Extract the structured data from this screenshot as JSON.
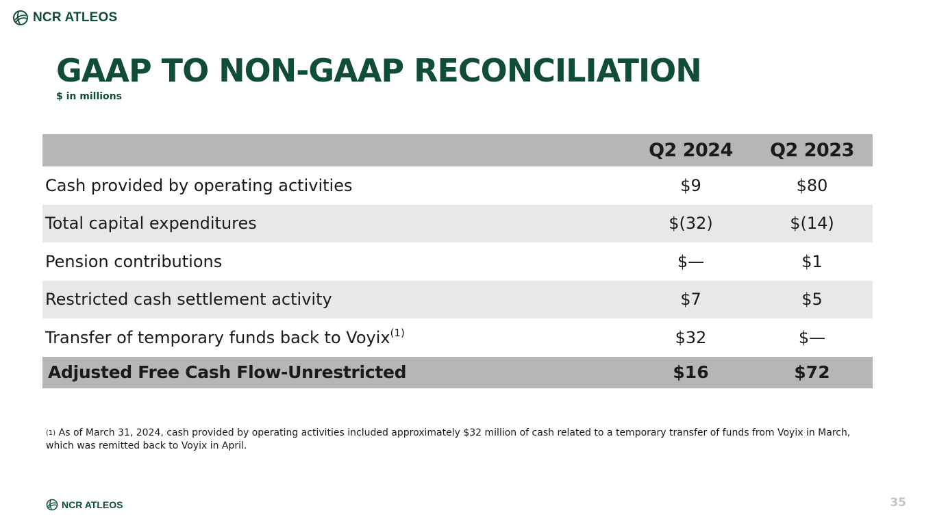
{
  "brand": {
    "name": "NCR ATLEOS",
    "logo_icon": "globe-icon",
    "color": "#0f4c3a"
  },
  "title": "GAAP TO NON-GAAP RECONCILIATION",
  "subtitle": "$ in millions",
  "table": {
    "columns": [
      "",
      "Q2 2024",
      "Q2 2023"
    ],
    "rows": [
      {
        "label": "Cash provided by operating activities",
        "footnote": "",
        "q2_2024": "$9",
        "q2_2023": "$80"
      },
      {
        "label": "Total capital expenditures",
        "footnote": "",
        "q2_2024": "$(32)",
        "q2_2023": "$(14)"
      },
      {
        "label": "Pension contributions",
        "footnote": "",
        "q2_2024": "$—",
        "q2_2023": "$1"
      },
      {
        "label": "Restricted cash settlement activity",
        "footnote": "",
        "q2_2024": "$7",
        "q2_2023": "$5"
      },
      {
        "label": "Transfer of temporary funds back to Voyix",
        "footnote": "(1)",
        "q2_2024": "$32",
        "q2_2023": "$—"
      }
    ],
    "total": {
      "label": "Adjusted Free Cash Flow-Unrestricted",
      "q2_2024": "$16",
      "q2_2023": "$72"
    }
  },
  "footnote": {
    "marker": "(1)",
    "text": "As of March 31, 2024, cash provided by operating activities included approximately $32 million of cash related to a temporary transfer of funds from Voyix in March, which was remitted back to Voyix in April."
  },
  "page_number": "35"
}
